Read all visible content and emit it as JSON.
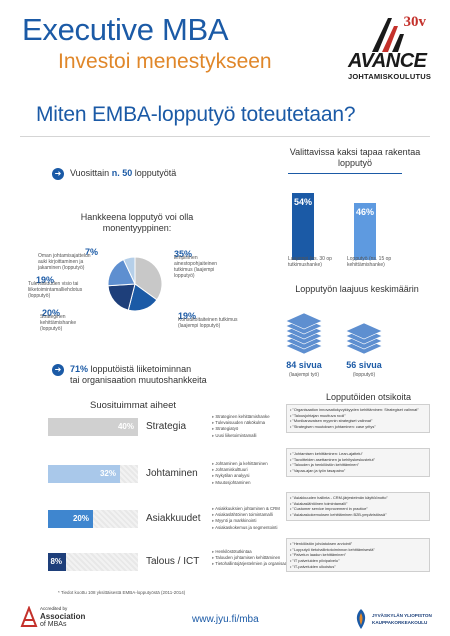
{
  "header": {
    "title": "Executive MBA",
    "subtitle": "Investoi menestykseen",
    "logo_year": "30v",
    "logo_name": "AVANCE",
    "logo_tagline": "JOHTAMISKOULUTUS"
  },
  "main_heading": "Miten EMBA-lopputyö toteutetaan?",
  "yearly": {
    "prefix": "Vuosittain ",
    "bold": "n. 50",
    "suffix": " lopputyötä"
  },
  "pie": {
    "title": "Hankkeena lopputyö voi olla monentyyppinen:",
    "slices": [
      {
        "pct": "35%",
        "label": "Empiirinen ainestopohjaiteinen tutkimus (laajempi lopputyö)",
        "value": 35,
        "color": "#c8c8c8"
      },
      {
        "pct": "19%",
        "label": "Konsultoitaiteinen tutkimus (laajempi lopputyö)",
        "value": 19,
        "color": "#1b5aa6"
      },
      {
        "pct": "20%",
        "label": "Strateginen kehittämishanke (lopputyö)",
        "value": 20,
        "color": "#1e3f7a"
      },
      {
        "pct": "19%",
        "label": "Tulevaisuuden visio tai liiketoimintamalliehdotus (lopputyö)",
        "value": 19,
        "color": "#5e8fd0"
      },
      {
        "pct": "7%",
        "label": "Oman johtamisajattelun auki kirjoittaminen ja jakaminen (lopputyö)",
        "value": 7,
        "color": "#b5cfe9"
      }
    ]
  },
  "stat71": {
    "bold": "71%",
    "line1": " lopputöistä liiketoiminnan",
    "line2": "tai organisaation muutoshankkeita"
  },
  "choice": {
    "title": "Valittavissa kaksi tapaa rakentaa lopputyö",
    "bars": [
      {
        "pct": "54%",
        "value": 54,
        "label": "Laajempi (ns. 30 op tutkimushanke)",
        "color": "#1b5aa6"
      },
      {
        "pct": "46%",
        "label": "Lopputyö (ns. 15 op kehittämishanke)",
        "value": 46,
        "color": "#5e9ae0"
      }
    ]
  },
  "scope": {
    "title": "Lopputyön laajuus keskimäärin",
    "items": [
      {
        "value": "84 sivua",
        "label": "(laajempi työ)"
      },
      {
        "value": "56 sivua",
        "label": "(lopputyö)"
      }
    ]
  },
  "topics": {
    "title": "Suosituimmat aiheet",
    "rows": [
      {
        "pct": "40%",
        "value": 40,
        "name": "Strategia",
        "color": "#d0d0d0",
        "items": [
          "Strateginen kehittämishanke",
          "Tulevaisuuden näkökulma",
          "Strategiatyö",
          "Uusi liiketoimintamalli"
        ]
      },
      {
        "pct": "32%",
        "value": 32,
        "name": "Johtaminen",
        "color": "#a9c8ea",
        "items": [
          "Johtaminen ja kehittäminen",
          "Johtamiskulttuuri",
          "Nykytilan analyysi",
          "Muutosjohtaminen"
        ]
      },
      {
        "pct": "20%",
        "value": 20,
        "name": "Asiakkuudet",
        "color": "#3f86cf",
        "items": [
          "Asiakkuuksien johtaminen & CRM",
          "Asiakaslähtöinen toimintamalli",
          "Myynti ja markkinointi",
          "Asiakaskokemus ja segmentointi"
        ]
      },
      {
        "pct": "8%",
        "value": 8,
        "name": "Talous / ICT",
        "color": "#1e3f7a",
        "items": [
          "Henkilöstötutkintaa",
          "Talouden johtamisen kehittäminen",
          "Tietohallintojärjestelmien ja organisaatiokehitys"
        ]
      }
    ]
  },
  "examples": {
    "title": "Lopputöiden otsikoita",
    "groups": [
      [
        "\"Organisaation innovaatiokyvykkyyden kehittäminen: Strategiset valinnat\"",
        "\"Talousjohtajan muuttuva rooli\"",
        "\"Monikanavaisen myynnin strategiset valinnat\"",
        "\"Strategisen muutoksen johtaminen: case yritys\""
      ],
      [
        "\"Johtamisen kehittäminen: Lean-ajattelu\"",
        "\"Tavoitteiden asettaminen ja kehityskeskustelut\"",
        "\"Talouden ja henkilöstön kehittäminen\"",
        "\"Vapaa-ajan ja työn tasapaino\""
      ],
      [
        "\"Asiakkuuden hallinta - CRM-järjestelmän käyttöönotto\"",
        "\"Asiakaslähtöinen toimintamalli\"",
        "\"Customer service improvement in practice\"",
        "\"Asiakaskokemuksen kehittäminen B2B-ympäristössä\""
      ],
      [
        "\"Henkilöstön johdatuksen arviointi\"",
        "\"Lopputyö tietohallintotoiminnon kehittämisestä\"",
        "\"Palvelun laadun kehittäminen\"",
        "\"IT palveluiden pilvipalvelu\"",
        "\"IT-palveluiden ulkoistus\""
      ]
    ]
  },
  "footnote": "* Tiedot koottu 108 yksittäisestä EMBA-lopputyöstä (2011-2014)",
  "footer": {
    "accredited": "Accredited by",
    "association": "Association",
    "of_mbas": "of MBAs",
    "url": "www.jyu.fi/mba",
    "university_line1": "JYVÄSKYLÄN YLIOPISTON",
    "university_line2": "KAUPPAKORKEAKOULU"
  }
}
